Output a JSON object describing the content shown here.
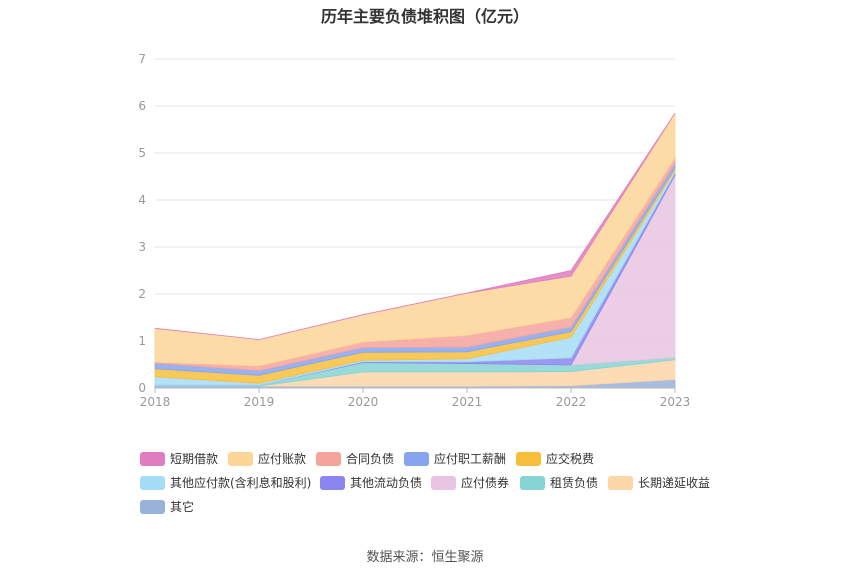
{
  "chart_data": {
    "type": "area",
    "title": "历年主要负债堆积图（亿元）",
    "x": [
      "2018",
      "2019",
      "2020",
      "2021",
      "2022",
      "2023"
    ],
    "ylim": [
      0,
      7
    ],
    "yticks": [
      0,
      1,
      2,
      3,
      4,
      5,
      6,
      7
    ],
    "grid": true,
    "legend_position": "bottom",
    "stack_order": [
      "其它",
      "长期递延收益",
      "租赁负债",
      "应付债券",
      "其他流动负债",
      "其他应付款(含利息和股利)",
      "应交税费",
      "应付职工薪酬",
      "合同负债",
      "应付账款",
      "短期借款"
    ],
    "series": [
      {
        "name": "短期借款",
        "color": "#e07cc0",
        "values": [
          0,
          0,
          0,
          0,
          0.12,
          0
        ]
      },
      {
        "name": "应付账款",
        "color": "#fdd596",
        "values": [
          0.72,
          0.56,
          0.58,
          0.9,
          0.88,
          0.95
        ]
      },
      {
        "name": "合同负债",
        "color": "#f5a49b",
        "values": [
          0.02,
          0.1,
          0.12,
          0.25,
          0.2,
          0.12
        ]
      },
      {
        "name": "应付职工薪酬",
        "color": "#86a5ee",
        "values": [
          0.12,
          0.1,
          0.1,
          0.1,
          0.1,
          0.1
        ]
      },
      {
        "name": "应交税费",
        "color": "#f7be3c",
        "values": [
          0.17,
          0.17,
          0.17,
          0.15,
          0.12,
          0.05
        ]
      },
      {
        "name": "其他应付款(含利息和股利)",
        "color": "#a5dcf7",
        "values": [
          0.18,
          0.04,
          0.03,
          0.06,
          0.44,
          0.05
        ]
      },
      {
        "name": "其他流动负债",
        "color": "#8b86ef",
        "values": [
          0,
          0,
          0.02,
          0.04,
          0.15,
          0.05
        ]
      },
      {
        "name": "应付债券",
        "color": "#e8c4e2",
        "values": [
          0,
          0,
          0,
          0,
          0,
          3.88
        ]
      },
      {
        "name": "租赁负债",
        "color": "#86d4d4",
        "values": [
          0.02,
          0.02,
          0.2,
          0.18,
          0.14,
          0.05
        ]
      },
      {
        "name": "长期递延收益",
        "color": "#fdd6a8",
        "values": [
          0,
          0,
          0.3,
          0.3,
          0.3,
          0.42
        ]
      },
      {
        "name": "其它",
        "color": "#99b2da",
        "values": [
          0.04,
          0.04,
          0.04,
          0.04,
          0.05,
          0.18
        ]
      }
    ]
  },
  "source_label": "数据来源：恒生聚源"
}
